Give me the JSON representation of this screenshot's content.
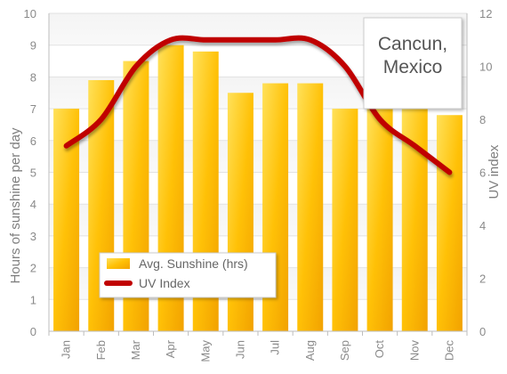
{
  "chart_data": {
    "type": "bar",
    "title": "Cancun, Mexico",
    "title_lines": [
      "Cancun,",
      "Mexico"
    ],
    "categories": [
      "Jan",
      "Feb",
      "Mar",
      "Apr",
      "May",
      "Jun",
      "Jul",
      "Aug",
      "Sep",
      "Oct",
      "Nov",
      "Dec"
    ],
    "series": [
      {
        "name": "Avg. Sunshine (hrs)",
        "type": "bar",
        "axis": "left",
        "values": [
          7.0,
          7.9,
          8.5,
          9.0,
          8.8,
          7.5,
          7.8,
          7.8,
          7.0,
          7.0,
          7.0,
          6.8
        ],
        "color": "#FFC000"
      },
      {
        "name": "UV Index",
        "type": "line",
        "axis": "right",
        "values": [
          7,
          8,
          10,
          11,
          11,
          11,
          11,
          11,
          10,
          8,
          7,
          6
        ],
        "color": "#C00000"
      }
    ],
    "ylabel": "Hours of sunshine per day",
    "y2label": "UV index",
    "ylim": [
      0,
      10
    ],
    "y2lim": [
      0,
      12
    ],
    "yticks": [
      0,
      1,
      2,
      3,
      4,
      5,
      6,
      7,
      8,
      9,
      10
    ],
    "y2ticks": [
      0,
      2,
      4,
      6,
      8,
      10,
      12
    ],
    "grid": true,
    "legend_position": "bottom-left"
  }
}
